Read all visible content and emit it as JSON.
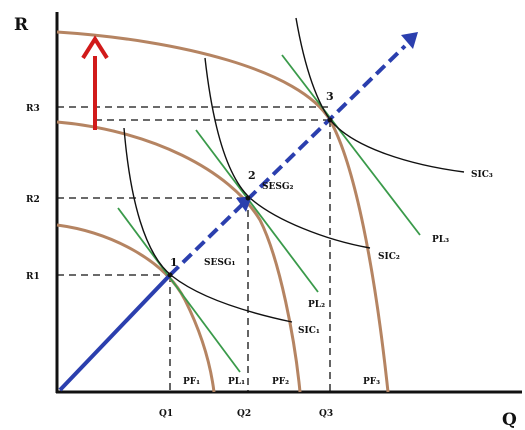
{
  "axes": {
    "x_label": "Q",
    "y_label": "R"
  },
  "ticks": {
    "x": [
      "Q1",
      "Q2",
      "Q3"
    ],
    "y": [
      "R1",
      "R2",
      "R3"
    ]
  },
  "points": [
    {
      "id": "1",
      "label": "1"
    },
    {
      "id": "2",
      "label": "2"
    },
    {
      "id": "3",
      "label": "3"
    }
  ],
  "curve_labels": {
    "pf1": "PF₁",
    "pf2": "PF₂",
    "pf3": "PF₃",
    "pl1": "PL₁",
    "pl2": "PL₂",
    "pl3": "PL₃",
    "sic1": "SIC₁",
    "sic2": "SIC₂",
    "sic3": "SIC₃",
    "sesg1": "SESG₁",
    "sesg2": "SESG₂"
  },
  "colors": {
    "ppf": "#b58462",
    "pl": "#3a9a4a",
    "sic": "#111111",
    "expansion": "#2b3fae",
    "shift_arrow": "#d11a1a",
    "guide": "#111111"
  }
}
